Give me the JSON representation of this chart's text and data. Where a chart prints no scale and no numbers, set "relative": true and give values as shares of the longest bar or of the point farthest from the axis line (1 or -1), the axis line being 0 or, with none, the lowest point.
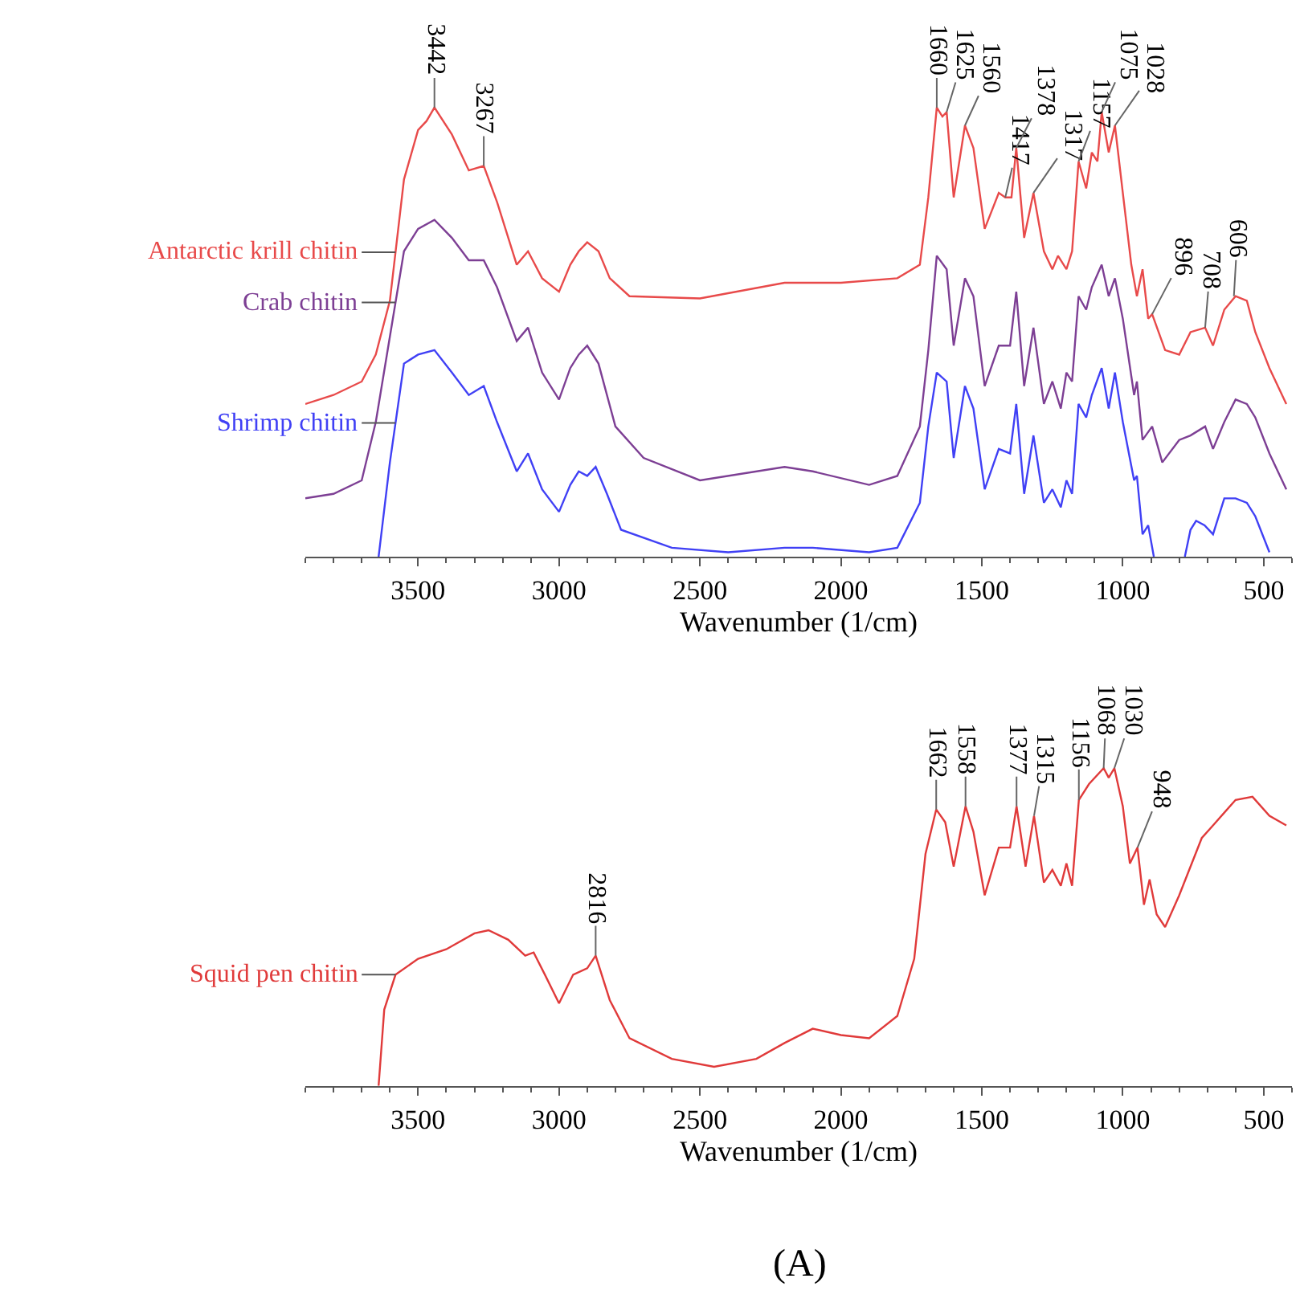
{
  "chart_data": [
    {
      "type": "line",
      "relative": true,
      "marker": "none",
      "line_style": "solid",
      "xlabel": "Wavenumber (1/cm)",
      "xlim": [
        3900,
        400
      ],
      "xticks": [
        {
          "value": 3900,
          "label": null
        },
        {
          "value": 3800,
          "label": null
        },
        {
          "value": 3700,
          "label": null
        },
        {
          "value": 3600,
          "label": null
        },
        3500,
        {
          "value": 3400,
          "label": null
        },
        {
          "value": 3300,
          "label": null
        },
        {
          "value": 3200,
          "label": null
        },
        {
          "value": 3100,
          "label": null
        },
        3000,
        {
          "value": 2900,
          "label": null
        },
        {
          "value": 2800,
          "label": null
        },
        {
          "value": 2700,
          "label": null
        },
        {
          "value": 2600,
          "label": null
        },
        2500,
        {
          "value": 2400,
          "label": null
        },
        {
          "value": 2300,
          "label": null
        },
        {
          "value": 2200,
          "label": null
        },
        {
          "value": 2100,
          "label": null
        },
        2000,
        {
          "value": 1900,
          "label": null
        },
        {
          "value": 1800,
          "label": null
        },
        {
          "value": 1700,
          "label": null
        },
        {
          "value": 1600,
          "label": null
        },
        1500,
        {
          "value": 1400,
          "label": null
        },
        {
          "value": 1300,
          "label": null
        },
        {
          "value": 1200,
          "label": null
        },
        {
          "value": 1100,
          "label": null
        },
        1000,
        {
          "value": 900,
          "label": null
        },
        {
          "value": 800,
          "label": null
        },
        {
          "value": 700,
          "label": null
        },
        {
          "value": 600,
          "label": null
        },
        500,
        {
          "value": 400,
          "label": null
        }
      ],
      "series": [
        {
          "name": "Antarctic krill chitin",
          "color": "#e84a4a",
          "x": [
            3900,
            3800,
            3700,
            3650,
            3600,
            3550,
            3500,
            3470,
            3442,
            3380,
            3320,
            3267,
            3220,
            3150,
            3110,
            3060,
            3000,
            2960,
            2930,
            2900,
            2860,
            2820,
            2750,
            2500,
            2200,
            2000,
            1800,
            1720,
            1690,
            1660,
            1640,
            1625,
            1600,
            1560,
            1530,
            1490,
            1440,
            1417,
            1395,
            1378,
            1350,
            1317,
            1280,
            1250,
            1230,
            1200,
            1180,
            1157,
            1130,
            1110,
            1090,
            1075,
            1050,
            1028,
            1000,
            970,
            950,
            930,
            910,
            896,
            850,
            800,
            760,
            708,
            680,
            640,
            600,
            560,
            530,
            480,
            420
          ],
          "values": [
            0.34,
            0.36,
            0.39,
            0.45,
            0.57,
            0.84,
            0.95,
            0.97,
            1.0,
            0.94,
            0.86,
            0.87,
            0.79,
            0.65,
            0.68,
            0.62,
            0.59,
            0.65,
            0.68,
            0.7,
            0.68,
            0.62,
            0.58,
            0.575,
            0.61,
            0.61,
            0.62,
            0.65,
            0.8,
            1.0,
            0.98,
            0.99,
            0.8,
            0.96,
            0.91,
            0.73,
            0.81,
            0.8,
            0.8,
            0.91,
            0.71,
            0.81,
            0.68,
            0.64,
            0.67,
            0.64,
            0.68,
            0.88,
            0.82,
            0.9,
            0.88,
            0.99,
            0.9,
            0.96,
            0.81,
            0.65,
            0.58,
            0.64,
            0.53,
            0.54,
            0.46,
            0.45,
            0.5,
            0.51,
            0.47,
            0.55,
            0.58,
            0.57,
            0.5,
            0.42,
            0.34
          ]
        },
        {
          "name": "Crab chitin",
          "color": "#7d3f94",
          "x": [
            3900,
            3800,
            3700,
            3650,
            3600,
            3550,
            3500,
            3442,
            3380,
            3320,
            3267,
            3220,
            3150,
            3110,
            3060,
            3000,
            2960,
            2930,
            2900,
            2860,
            2800,
            2700,
            2500,
            2200,
            2100,
            1900,
            1800,
            1720,
            1690,
            1660,
            1625,
            1600,
            1560,
            1530,
            1490,
            1440,
            1400,
            1378,
            1350,
            1317,
            1280,
            1250,
            1220,
            1200,
            1180,
            1157,
            1130,
            1110,
            1075,
            1050,
            1028,
            1000,
            960,
            950,
            930,
            896,
            860,
            800,
            760,
            708,
            680,
            640,
            600,
            560,
            530,
            480,
            420
          ],
          "values": [
            0.13,
            0.14,
            0.17,
            0.3,
            0.49,
            0.68,
            0.73,
            0.75,
            0.71,
            0.66,
            0.66,
            0.6,
            0.48,
            0.51,
            0.41,
            0.35,
            0.42,
            0.45,
            0.47,
            0.43,
            0.29,
            0.22,
            0.17,
            0.2,
            0.19,
            0.16,
            0.18,
            0.29,
            0.46,
            0.67,
            0.64,
            0.47,
            0.62,
            0.58,
            0.38,
            0.47,
            0.47,
            0.59,
            0.38,
            0.51,
            0.34,
            0.39,
            0.33,
            0.41,
            0.39,
            0.58,
            0.55,
            0.6,
            0.65,
            0.58,
            0.62,
            0.53,
            0.36,
            0.39,
            0.26,
            0.29,
            0.21,
            0.26,
            0.27,
            0.29,
            0.24,
            0.3,
            0.35,
            0.34,
            0.31,
            0.23,
            0.15
          ]
        },
        {
          "name": "Shrimp chitin",
          "color": "#4040f5",
          "x": [
            3640,
            3600,
            3550,
            3500,
            3442,
            3380,
            3320,
            3267,
            3220,
            3150,
            3110,
            3060,
            3000,
            2960,
            2930,
            2900,
            2870,
            2830,
            2780,
            2600,
            2400,
            2200,
            2100,
            1900,
            1800,
            1720,
            1690,
            1660,
            1625,
            1600,
            1560,
            1530,
            1490,
            1440,
            1400,
            1378,
            1350,
            1317,
            1280,
            1250,
            1220,
            1200,
            1180,
            1157,
            1130,
            1110,
            1075,
            1050,
            1028,
            1000,
            960,
            950,
            930,
            910,
            890,
            830,
            780,
            760,
            740,
            710,
            680,
            640,
            600,
            560,
            530,
            480
          ],
          "values": [
            0.0,
            0.21,
            0.43,
            0.45,
            0.46,
            0.41,
            0.36,
            0.38,
            0.3,
            0.19,
            0.23,
            0.15,
            0.1,
            0.16,
            0.19,
            0.18,
            0.2,
            0.14,
            0.06,
            0.02,
            0.01,
            0.02,
            0.02,
            0.01,
            0.02,
            0.12,
            0.29,
            0.41,
            0.39,
            0.22,
            0.38,
            0.33,
            0.15,
            0.24,
            0.23,
            0.34,
            0.14,
            0.27,
            0.12,
            0.15,
            0.11,
            0.17,
            0.14,
            0.34,
            0.31,
            0.36,
            0.42,
            0.33,
            0.41,
            0.3,
            0.17,
            0.18,
            0.05,
            0.07,
            0.0,
            null,
            0.0,
            0.06,
            0.08,
            0.07,
            0.05,
            0.13,
            0.13,
            0.12,
            0.09,
            0.01
          ]
        }
      ],
      "annotations": [
        {
          "text": "3442",
          "x": 3442,
          "y": 1.0
        },
        {
          "text": "3267",
          "x": 3267,
          "y": 0.87
        },
        {
          "text": "1660",
          "x": 1660,
          "y": 1.0
        },
        {
          "text": "1625",
          "x": 1625,
          "y": 0.99
        },
        {
          "text": "1560",
          "x": 1560,
          "y": 0.96
        },
        {
          "text": "1417",
          "x": 1417,
          "y": 0.8
        },
        {
          "text": "1378",
          "x": 1378,
          "y": 0.91
        },
        {
          "text": "1317",
          "x": 1317,
          "y": 0.81
        },
        {
          "text": "1157",
          "x": 1157,
          "y": 0.88
        },
        {
          "text": "1075",
          "x": 1075,
          "y": 0.99
        },
        {
          "text": "1028",
          "x": 1028,
          "y": 0.96
        },
        {
          "text": "896",
          "x": 896,
          "y": 0.54
        },
        {
          "text": "708",
          "x": 708,
          "y": 0.51
        },
        {
          "text": "606",
          "x": 606,
          "y": 0.58
        }
      ]
    },
    {
      "type": "line",
      "relative": true,
      "marker": "none",
      "line_style": "solid",
      "title": "(A)",
      "xlabel": "Wavenumber (1/cm)",
      "xlim": [
        3900,
        400
      ],
      "xticks": [
        {
          "value": 3900,
          "label": null
        },
        {
          "value": 3800,
          "label": null
        },
        {
          "value": 3700,
          "label": null
        },
        {
          "value": 3600,
          "label": null
        },
        3500,
        {
          "value": 3400,
          "label": null
        },
        {
          "value": 3300,
          "label": null
        },
        {
          "value": 3200,
          "label": null
        },
        {
          "value": 3100,
          "label": null
        },
        3000,
        {
          "value": 2900,
          "label": null
        },
        {
          "value": 2800,
          "label": null
        },
        {
          "value": 2700,
          "label": null
        },
        {
          "value": 2600,
          "label": null
        },
        2500,
        {
          "value": 2400,
          "label": null
        },
        {
          "value": 2300,
          "label": null
        },
        {
          "value": 2200,
          "label": null
        },
        {
          "value": 2100,
          "label": null
        },
        2000,
        {
          "value": 1900,
          "label": null
        },
        {
          "value": 1800,
          "label": null
        },
        {
          "value": 1700,
          "label": null
        },
        {
          "value": 1600,
          "label": null
        },
        1500,
        {
          "value": 1400,
          "label": null
        },
        {
          "value": 1300,
          "label": null
        },
        {
          "value": 1200,
          "label": null
        },
        {
          "value": 1100,
          "label": null
        },
        1000,
        {
          "value": 900,
          "label": null
        },
        {
          "value": 800,
          "label": null
        },
        {
          "value": 700,
          "label": null
        },
        {
          "value": 600,
          "label": null
        },
        500,
        {
          "value": 400,
          "label": null
        }
      ],
      "series": [
        {
          "name": "Squid pen chitin",
          "color": "#e03a3a",
          "x": [
            3640,
            3620,
            3580,
            3500,
            3400,
            3300,
            3250,
            3180,
            3120,
            3090,
            3050,
            3000,
            2950,
            2900,
            2870,
            2820,
            2750,
            2600,
            2450,
            2300,
            2200,
            2100,
            2000,
            1900,
            1800,
            1740,
            1700,
            1662,
            1630,
            1600,
            1558,
            1530,
            1490,
            1440,
            1400,
            1377,
            1345,
            1315,
            1280,
            1250,
            1220,
            1200,
            1180,
            1156,
            1120,
            1068,
            1050,
            1030,
            1000,
            975,
            948,
            925,
            905,
            880,
            850,
            800,
            720,
            680,
            600,
            540,
            480,
            420
          ],
          "values": [
            0.0,
            0.24,
            0.35,
            0.4,
            0.43,
            0.48,
            0.49,
            0.46,
            0.41,
            0.42,
            0.35,
            0.26,
            0.35,
            0.37,
            0.41,
            0.27,
            0.15,
            0.085,
            0.06,
            0.085,
            0.135,
            0.18,
            0.16,
            0.15,
            0.22,
            0.4,
            0.73,
            0.87,
            0.83,
            0.69,
            0.88,
            0.8,
            0.6,
            0.75,
            0.75,
            0.88,
            0.69,
            0.85,
            0.64,
            0.68,
            0.63,
            0.7,
            0.63,
            0.9,
            0.95,
            1.0,
            0.97,
            1.0,
            0.88,
            0.7,
            0.75,
            0.57,
            0.65,
            0.54,
            0.5,
            0.6,
            0.78,
            0.82,
            0.9,
            0.91,
            0.85,
            0.82
          ]
        }
      ],
      "annotations": [
        {
          "text": "2816",
          "x": 2870,
          "y": 0.41
        },
        {
          "text": "1662",
          "x": 1662,
          "y": 0.87
        },
        {
          "text": "1558",
          "x": 1558,
          "y": 0.88
        },
        {
          "text": "1377",
          "x": 1377,
          "y": 0.88
        },
        {
          "text": "1315",
          "x": 1315,
          "y": 0.85
        },
        {
          "text": "1156",
          "x": 1156,
          "y": 0.9
        },
        {
          "text": "1068",
          "x": 1068,
          "y": 1.0
        },
        {
          "text": "1030",
          "x": 1030,
          "y": 1.0
        },
        {
          "text": "948",
          "x": 948,
          "y": 0.75
        }
      ]
    }
  ]
}
